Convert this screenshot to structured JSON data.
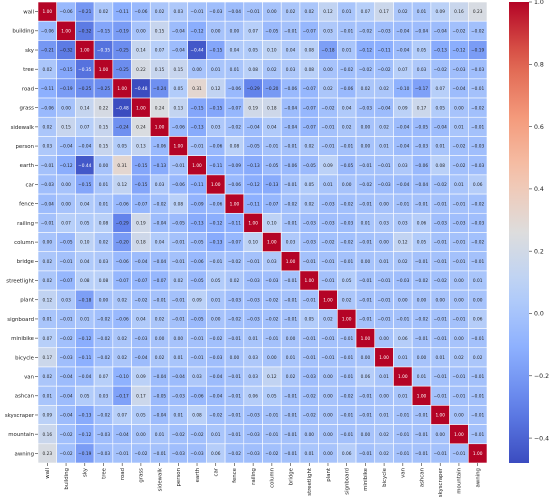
{
  "chart_data": {
    "type": "heatmap",
    "title": "",
    "xlabel": "",
    "ylabel": "",
    "labels": [
      "wall",
      "building",
      "sky",
      "tree",
      "road",
      "grass",
      "sidewalk",
      "person",
      "earth",
      "car",
      "fence",
      "railing",
      "column",
      "bridge",
      "streetlight",
      "plant",
      "signboard",
      "minibike",
      "bicycle",
      "van",
      "ashcan",
      "skyscraper",
      "mountain",
      "awning"
    ],
    "matrix": [
      [
        1.0,
        -0.06,
        -0.21,
        0.02,
        -0.11,
        -0.06,
        0.02,
        0.03,
        -0.01,
        -0.03,
        -0.04,
        -0.01,
        0.0,
        0.02,
        0.02,
        0.12,
        0.01,
        0.07,
        0.17,
        0.02,
        0.01,
        0.09,
        0.16,
        0.23
      ],
      [
        -0.06,
        1.0,
        -0.32,
        -0.15,
        -0.19,
        0.0,
        0.15,
        -0.04,
        -0.12,
        0.0,
        0.0,
        0.07,
        -0.05,
        -0.01,
        -0.07,
        0.03,
        -0.01,
        -0.02,
        -0.03,
        -0.04,
        -0.04,
        -0.04,
        -0.02,
        -0.02
      ],
      [
        -0.21,
        -0.32,
        1.0,
        -0.35,
        -0.25,
        0.14,
        0.07,
        -0.04,
        -0.44,
        -0.15,
        0.04,
        0.05,
        0.1,
        0.04,
        0.08,
        -0.18,
        0.01,
        -0.12,
        -0.11,
        -0.04,
        0.05,
        -0.13,
        -0.12,
        -0.19
      ],
      [
        0.02,
        -0.15,
        -0.35,
        1.0,
        -0.25,
        0.22,
        0.15,
        0.15,
        -0.0,
        0.01,
        0.01,
        0.08,
        0.02,
        0.03,
        0.08,
        0.0,
        -0.02,
        -0.02,
        -0.02,
        0.07,
        0.03,
        -0.02,
        -0.03,
        -0.03
      ],
      [
        -0.11,
        -0.19,
        -0.25,
        -0.25,
        1.0,
        -0.48,
        -0.24,
        0.05,
        0.31,
        0.12,
        -0.06,
        -0.29,
        -0.2,
        -0.06,
        -0.07,
        0.02,
        -0.06,
        0.02,
        0.02,
        -0.1,
        -0.17,
        0.07,
        -0.04,
        -0.01
      ],
      [
        -0.06,
        0.0,
        0.14,
        0.22,
        -0.48,
        1.0,
        0.24,
        0.13,
        -0.15,
        -0.15,
        -0.07,
        0.19,
        0.18,
        -0.04,
        -0.07,
        -0.02,
        0.04,
        -0.03,
        -0.04,
        0.09,
        0.17,
        0.05,
        0.0,
        -0.02
      ],
      [
        0.02,
        0.15,
        0.07,
        0.15,
        -0.24,
        0.24,
        1.0,
        -0.06,
        -0.13,
        0.03,
        -0.02,
        -0.04,
        0.04,
        -0.04,
        -0.07,
        -0.01,
        0.02,
        0.0,
        0.02,
        -0.04,
        -0.05,
        -0.04,
        0.01,
        -0.01
      ],
      [
        0.03,
        -0.04,
        -0.04,
        0.15,
        0.05,
        0.13,
        -0.06,
        1.0,
        -0.01,
        -0.06,
        0.08,
        -0.05,
        -0.01,
        -0.01,
        0.02,
        -0.01,
        -0.01,
        -0.0,
        0.01,
        -0.04,
        -0.03,
        0.01,
        -0.02,
        -0.03
      ],
      [
        -0.01,
        -0.12,
        -0.44,
        -0.0,
        0.31,
        -0.15,
        -0.13,
        -0.01,
        1.0,
        -0.11,
        -0.09,
        -0.13,
        -0.05,
        -0.06,
        -0.05,
        0.09,
        -0.05,
        -0.01,
        -0.01,
        0.03,
        -0.06,
        0.08,
        -0.02,
        -0.03
      ],
      [
        -0.03,
        0.0,
        -0.15,
        0.01,
        0.12,
        -0.15,
        0.03,
        -0.06,
        -0.11,
        1.0,
        -0.06,
        -0.12,
        -0.13,
        -0.01,
        0.05,
        0.01,
        0.0,
        -0.02,
        -0.03,
        -0.04,
        -0.04,
        -0.02,
        0.01,
        0.06
      ],
      [
        -0.04,
        0.0,
        0.04,
        0.01,
        -0.06,
        -0.07,
        -0.02,
        0.08,
        -0.09,
        -0.06,
        1.0,
        -0.11,
        -0.07,
        -0.02,
        0.02,
        -0.03,
        -0.02,
        -0.01,
        -0.0,
        -0.01,
        -0.01,
        -0.01,
        -0.01,
        -0.02
      ],
      [
        -0.01,
        0.07,
        0.05,
        0.08,
        -0.29,
        0.19,
        -0.04,
        -0.05,
        -0.13,
        -0.12,
        -0.11,
        1.0,
        0.1,
        -0.01,
        -0.03,
        -0.03,
        -0.03,
        0.01,
        0.03,
        0.03,
        0.06,
        -0.03,
        -0.03,
        -0.03
      ],
      [
        0.0,
        -0.05,
        0.1,
        0.02,
        -0.2,
        0.18,
        0.04,
        -0.01,
        -0.05,
        -0.13,
        -0.07,
        0.1,
        1.0,
        0.03,
        -0.03,
        -0.02,
        -0.02,
        -0.01,
        -0.0,
        0.12,
        0.05,
        -0.01,
        -0.01,
        -0.02
      ],
      [
        0.02,
        -0.01,
        0.04,
        0.03,
        -0.06,
        -0.04,
        -0.04,
        -0.01,
        -0.06,
        -0.01,
        -0.02,
        -0.01,
        0.03,
        1.0,
        -0.01,
        -0.01,
        -0.01,
        -0.0,
        0.01,
        0.02,
        -0.01,
        -0.01,
        -0.01,
        -0.01
      ],
      [
        0.02,
        -0.07,
        0.08,
        0.08,
        -0.07,
        -0.07,
        -0.07,
        0.02,
        -0.05,
        0.05,
        0.02,
        -0.03,
        -0.03,
        -0.01,
        1.0,
        -0.01,
        0.05,
        -0.01,
        -0.01,
        -0.03,
        -0.02,
        -0.02,
        0.0,
        0.01
      ],
      [
        0.12,
        0.03,
        -0.18,
        0.0,
        0.02,
        -0.02,
        -0.01,
        -0.01,
        0.09,
        0.01,
        -0.03,
        -0.03,
        -0.02,
        -0.01,
        -0.01,
        1.0,
        0.02,
        -0.01,
        -0.01,
        0.0,
        0.0,
        -0.0,
        0.0,
        0.0
      ],
      [
        0.01,
        -0.01,
        0.01,
        -0.02,
        -0.06,
        0.04,
        0.02,
        -0.01,
        -0.05,
        0.0,
        -0.02,
        -0.03,
        -0.02,
        -0.01,
        0.05,
        0.02,
        1.0,
        -0.01,
        -0.01,
        -0.01,
        -0.02,
        -0.01,
        -0.01,
        0.06
      ],
      [
        0.07,
        -0.02,
        -0.12,
        -0.02,
        0.02,
        -0.03,
        0.0,
        -0.0,
        -0.01,
        -0.02,
        -0.01,
        0.01,
        -0.01,
        -0.0,
        -0.01,
        -0.01,
        -0.01,
        1.0,
        0.0,
        0.06,
        -0.01,
        -0.01,
        -0.0,
        -0.01
      ],
      [
        0.17,
        -0.03,
        -0.11,
        -0.02,
        0.02,
        -0.04,
        0.02,
        0.01,
        -0.01,
        -0.03,
        -0.0,
        0.03,
        -0.0,
        0.01,
        -0.01,
        -0.01,
        -0.01,
        0.0,
        1.0,
        0.01,
        0.0,
        0.01,
        0.02,
        0.02
      ],
      [
        0.02,
        -0.04,
        -0.04,
        0.07,
        -0.1,
        0.09,
        -0.04,
        -0.04,
        0.03,
        -0.04,
        -0.01,
        0.03,
        0.12,
        0.02,
        -0.03,
        0.0,
        -0.01,
        0.06,
        0.01,
        1.0,
        0.01,
        -0.01,
        -0.01,
        -0.01
      ],
      [
        0.01,
        -0.04,
        0.05,
        0.03,
        -0.17,
        0.17,
        -0.05,
        -0.03,
        -0.06,
        -0.04,
        -0.01,
        0.06,
        0.05,
        -0.01,
        -0.02,
        0.0,
        -0.02,
        -0.01,
        0.0,
        0.01,
        1.0,
        -0.01,
        -0.01,
        -0.01
      ],
      [
        0.09,
        -0.04,
        -0.13,
        -0.02,
        0.07,
        0.05,
        -0.04,
        0.01,
        0.08,
        -0.02,
        -0.01,
        -0.03,
        -0.01,
        -0.01,
        -0.02,
        -0.0,
        -0.01,
        -0.01,
        0.01,
        -0.01,
        -0.01,
        1.0,
        -0.0,
        -0.01
      ],
      [
        0.16,
        -0.02,
        -0.12,
        -0.03,
        -0.04,
        0.0,
        0.01,
        -0.02,
        -0.02,
        0.01,
        -0.01,
        -0.03,
        -0.01,
        -0.01,
        0.0,
        0.0,
        -0.01,
        -0.0,
        0.02,
        -0.01,
        -0.01,
        -0.0,
        1.0,
        -0.01
      ],
      [
        0.23,
        -0.02,
        -0.19,
        -0.03,
        -0.01,
        -0.02,
        -0.01,
        -0.03,
        -0.03,
        0.06,
        -0.02,
        -0.03,
        -0.02,
        -0.01,
        0.01,
        0.0,
        0.06,
        -0.01,
        0.02,
        -0.01,
        -0.01,
        -0.01,
        -0.01,
        1.0
      ]
    ],
    "vmin": -0.48,
    "vmax": 1.0,
    "colormap": "coolwarm",
    "colorbar_ticks": [
      -0.4,
      -0.2,
      0.0,
      0.2,
      0.4,
      0.6,
      0.8,
      1.0
    ],
    "colorbar_tick_labels": [
      "−0.4",
      "−0.2",
      "0.0",
      "0.2",
      "0.4",
      "0.6",
      "0.8",
      "1.0"
    ],
    "gridlines": true,
    "gridline_color": "#ffffff",
    "annotations": true,
    "value_format": "2 decimals",
    "legend": "colorbar-right"
  }
}
